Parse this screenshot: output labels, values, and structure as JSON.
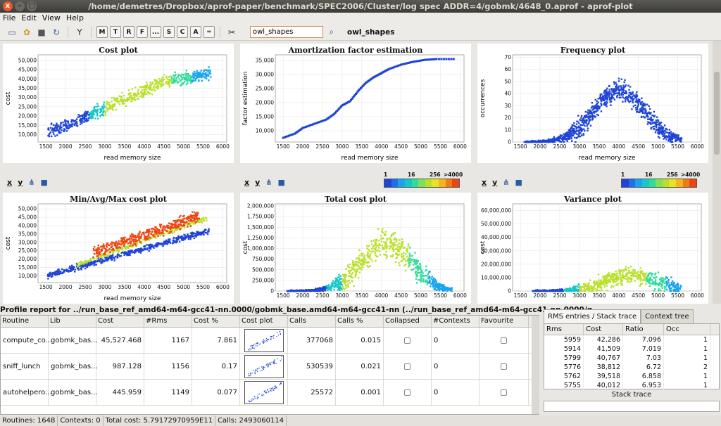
{
  "window": {
    "title": "/home/demetres/Dropbox/aprof-paper/benchmark/SPEC2006/Cluster/log spec ADDR=4/gobmk/4648_0.aprof - aprof-plot",
    "controls": {
      "close": "x",
      "minimize": "–",
      "maximize": "□"
    }
  },
  "menu": [
    "File",
    "Edit",
    "View",
    "Help"
  ],
  "toolbar": {
    "letters": [
      {
        "label": "M",
        "on": true
      },
      {
        "label": "T",
        "on": true
      },
      {
        "label": "R",
        "on": false
      },
      {
        "label": "F",
        "on": true
      },
      {
        "label": "...",
        "on": true
      },
      {
        "label": "S",
        "on": true
      },
      {
        "label": "C",
        "on": false
      },
      {
        "label": "A",
        "on": true
      },
      {
        "label": "═",
        "on": true
      }
    ],
    "search_value": "owl_shapes",
    "search_result": "owl_shapes"
  },
  "plots": {
    "cost": {
      "title": "Cost plot",
      "xlabel": "read memory size",
      "ylabel": "cost",
      "xticks": [
        "1500",
        "2000",
        "2500",
        "3000",
        "3500",
        "4000",
        "4500",
        "5000",
        "5500",
        "6000"
      ],
      "yticks": [
        "10,000",
        "15,000",
        "20,000",
        "25,000",
        "30,000",
        "35,000",
        "40,000",
        "45,000",
        "50,000"
      ]
    },
    "amort": {
      "title": "Amortization factor estimation",
      "xlabel": "read memory size",
      "ylabel": "factor estimation",
      "xticks": [
        "1500",
        "2000",
        "2500",
        "3000",
        "3500",
        "4000",
        "4500",
        "5000",
        "5500",
        "6000"
      ],
      "yticks": [
        "10,000",
        "15,000",
        "20,000",
        "25,000",
        "30,000",
        "35,000"
      ]
    },
    "freq": {
      "title": "Frequency plot",
      "xlabel": "read memory size",
      "ylabel": "occurrences",
      "xticks": [
        "1500",
        "2000",
        "2500",
        "3000",
        "3500",
        "4000",
        "4500",
        "5000",
        "5500",
        "6000"
      ],
      "yticks": [
        "0",
        "10",
        "20",
        "30",
        "40",
        "50",
        "60",
        "70"
      ]
    },
    "minmax": {
      "title": "Min/Avg/Max cost plot",
      "xlabel": "read memory size",
      "ylabel": "cost",
      "xticks": [
        "1500",
        "2000",
        "2500",
        "3000",
        "3500",
        "4000",
        "4500",
        "5000",
        "5500",
        "6000"
      ],
      "yticks": [
        "10,000",
        "15,000",
        "20,000",
        "25,000",
        "30,000",
        "35,000",
        "40,000",
        "45,000",
        "50,000"
      ]
    },
    "total": {
      "title": "Total cost plot",
      "xlabel": "",
      "ylabel": "cost",
      "xticks": [
        "1500",
        "2000",
        "2500",
        "3000",
        "3500",
        "4000",
        "4500",
        "5000",
        "5500",
        "6000"
      ],
      "yticks": [
        "0",
        "250,000",
        "500,000",
        "750,000",
        "1,000,000",
        "1,250,000",
        "1,500,000",
        "1,750,000",
        "2,000,000"
      ]
    },
    "variance": {
      "title": "Variance plot",
      "xlabel": "",
      "ylabel": "cost",
      "xticks": [
        "1500",
        "2000",
        "2500",
        "3000",
        "3500",
        "4000",
        "4500",
        "5000",
        "5500",
        "6000"
      ],
      "yticks": [
        "0",
        "10,000,000",
        "20,000,000",
        "30,000,000",
        "40,000,000",
        "50,000,000",
        "60,000,000"
      ]
    }
  },
  "plot_controls": {
    "x": "x",
    "y": "y"
  },
  "legend": {
    "labels": [
      "1",
      "16",
      "256",
      ">4000"
    ]
  },
  "colors": {
    "blue": "#1f45d6",
    "yellowgreen": "#b8e02a",
    "cyan": "#16c7c7",
    "orange": "#f04410"
  },
  "chart_data": [
    {
      "type": "scatter",
      "title": "Cost plot",
      "xlabel": "read memory size",
      "ylabel": "cost",
      "xlim": [
        1300,
        6100
      ],
      "ylim": [
        6000,
        53000
      ]
    },
    {
      "type": "line",
      "title": "Amortization factor estimation",
      "xlabel": "read memory size",
      "ylabel": "factor estimation",
      "xlim": [
        1300,
        6100
      ],
      "ylim": [
        6000,
        37000
      ],
      "x": [
        1500,
        1800,
        2000,
        2300,
        2600,
        2800,
        3000,
        3200,
        3400,
        3600,
        3800,
        4000,
        4200,
        4500,
        4800,
        5100,
        5400,
        5900
      ],
      "y": [
        7500,
        9000,
        11000,
        12500,
        14000,
        16000,
        19000,
        20500,
        24000,
        27000,
        29000,
        30500,
        32000,
        33500,
        34500,
        35200,
        35500,
        35500
      ]
    },
    {
      "type": "scatter",
      "title": "Frequency plot",
      "xlabel": "read memory size",
      "ylabel": "occurrences",
      "xlim": [
        1300,
        6100
      ],
      "ylim": [
        0,
        72
      ]
    },
    {
      "type": "scatter",
      "title": "Min/Avg/Max cost plot",
      "xlabel": "read memory size",
      "ylabel": "cost",
      "xlim": [
        1300,
        6100
      ],
      "ylim": [
        6000,
        53000
      ]
    },
    {
      "type": "scatter",
      "title": "Total cost plot",
      "ylabel": "cost",
      "xlim": [
        1300,
        6100
      ],
      "ylim": [
        0,
        2050000
      ]
    },
    {
      "type": "scatter",
      "title": "Variance plot",
      "ylabel": "cost",
      "xlim": [
        1300,
        6100
      ],
      "ylim": [
        0,
        65000000
      ]
    }
  ],
  "report": {
    "header": "Profile report for ../run_base_ref_amd64-m64-gcc41-nn.0000/gobmk_base.amd64-m64-gcc41-nn (../run_base_ref_amd64-m64-gcc41-nn.0000/g...",
    "columns": [
      "Routine",
      "Lib",
      "Cost",
      "#Rms",
      "Cost %",
      "Cost plot",
      "Calls",
      "Calls %",
      "Collapsed",
      "#Contexts",
      "Favourite"
    ],
    "rows": [
      {
        "routine": "compute_co...",
        "lib": "gobmk_bas...",
        "cost": "45,527.468",
        "rms": "1167",
        "cost_pct": "7.861",
        "calls": "377068",
        "calls_pct": "0.015",
        "contexts": "0"
      },
      {
        "routine": "sniff_lunch",
        "lib": "gobmk_bas...",
        "cost": "987.128",
        "rms": "1156",
        "cost_pct": "0.17",
        "calls": "530539",
        "calls_pct": "0.021",
        "contexts": "0"
      },
      {
        "routine": "autohelpero...",
        "lib": "gobmk_bas...",
        "cost": "445.959",
        "rms": "1149",
        "cost_pct": "0.077",
        "calls": "25572",
        "calls_pct": "0.001",
        "contexts": "0"
      }
    ]
  },
  "side": {
    "tabs": [
      "RMS entries / Stack trace",
      "Context tree"
    ],
    "columns": [
      "Rms",
      "Cost",
      "Ratio",
      "Occ"
    ],
    "rows": [
      {
        "rms": "5959",
        "cost": "42,286",
        "ratio": "7.096",
        "occ": "1"
      },
      {
        "rms": "5914",
        "cost": "41,509",
        "ratio": "7.019",
        "occ": "1"
      },
      {
        "rms": "5799",
        "cost": "40,767",
        "ratio": "7.03",
        "occ": "1"
      },
      {
        "rms": "5776",
        "cost": "38,812",
        "ratio": "6.72",
        "occ": "2"
      },
      {
        "rms": "5762",
        "cost": "39,518",
        "ratio": "6.858",
        "occ": "1"
      },
      {
        "rms": "5755",
        "cost": "40,012",
        "ratio": "6.953",
        "occ": "1"
      }
    ],
    "stack_trace_label": "Stack trace"
  },
  "status": {
    "routines": "Routines: 1648",
    "contexts": "Contexts: 0",
    "total_cost": "Total cost: 5.79172970959E11",
    "calls": "Calls: 2493060114"
  }
}
